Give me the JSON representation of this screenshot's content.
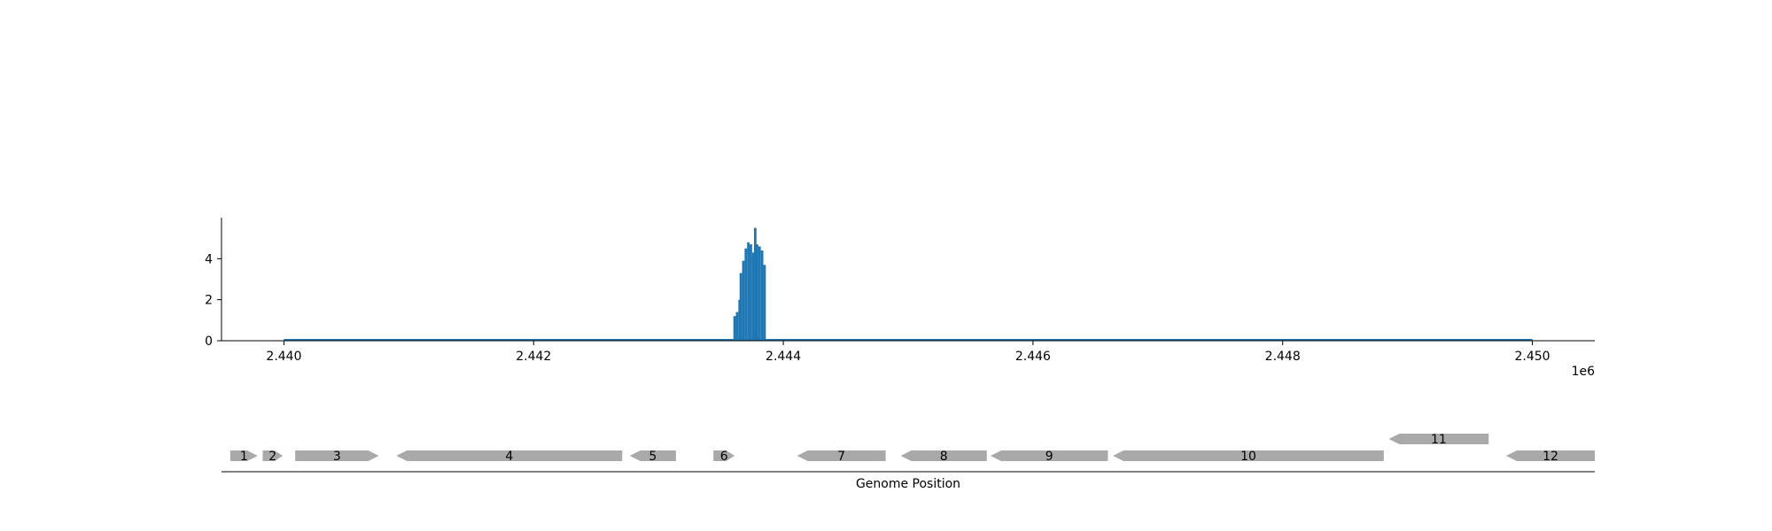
{
  "chart_data": [
    {
      "type": "bar",
      "title": "",
      "xlabel": "",
      "ylabel": "",
      "x_offset_label": "1e6",
      "xlim": [
        2439500,
        2450500
      ],
      "ylim": [
        0,
        6
      ],
      "x_ticks": [
        2440000,
        2442000,
        2444000,
        2446000,
        2448000,
        2450000
      ],
      "x_tick_labels": [
        "2.440",
        "2.442",
        "2.444",
        "2.446",
        "2.448",
        "2.450"
      ],
      "y_ticks": [
        0,
        2,
        4
      ],
      "y_tick_labels": [
        "0",
        "2",
        "4"
      ],
      "baseline_range": [
        2440000,
        2450000
      ],
      "bar_width": 20,
      "bars": [
        {
          "x": 2443600,
          "y": 1.2
        },
        {
          "x": 2443620,
          "y": 1.4
        },
        {
          "x": 2443640,
          "y": 2.0
        },
        {
          "x": 2443650,
          "y": 3.3
        },
        {
          "x": 2443670,
          "y": 3.9
        },
        {
          "x": 2443690,
          "y": 4.5
        },
        {
          "x": 2443710,
          "y": 4.8
        },
        {
          "x": 2443730,
          "y": 4.7
        },
        {
          "x": 2443750,
          "y": 4.3
        },
        {
          "x": 2443765,
          "y": 5.5
        },
        {
          "x": 2443780,
          "y": 4.7
        },
        {
          "x": 2443800,
          "y": 4.6
        },
        {
          "x": 2443820,
          "y": 4.4
        },
        {
          "x": 2443840,
          "y": 3.7
        }
      ],
      "grid": false,
      "legend": "none",
      "color": "#1f77b4"
    },
    {
      "type": "gene-track",
      "xlabel": "Genome Position",
      "xlim": [
        2439500,
        2450500
      ],
      "genes": [
        {
          "label": "1",
          "start": 2439570,
          "end": 2439790,
          "strand": "+",
          "row": 0
        },
        {
          "label": "2",
          "start": 2439830,
          "end": 2439990,
          "strand": "+",
          "row": 0
        },
        {
          "label": "3",
          "start": 2440090,
          "end": 2440760,
          "strand": "+",
          "row": 0
        },
        {
          "label": "4",
          "start": 2440900,
          "end": 2442710,
          "strand": "-",
          "row": 0
        },
        {
          "label": "5",
          "start": 2442770,
          "end": 2443140,
          "strand": "-",
          "row": 0
        },
        {
          "label": "6",
          "start": 2443440,
          "end": 2443610,
          "strand": "+",
          "row": 0
        },
        {
          "label": "7",
          "start": 2444110,
          "end": 2444820,
          "strand": "-",
          "row": 0
        },
        {
          "label": "8",
          "start": 2444940,
          "end": 2445630,
          "strand": "-",
          "row": 0
        },
        {
          "label": "9",
          "start": 2445660,
          "end": 2446600,
          "strand": "-",
          "row": 0
        },
        {
          "label": "10",
          "start": 2446640,
          "end": 2448810,
          "strand": "-",
          "row": 0
        },
        {
          "label": "11",
          "start": 2448850,
          "end": 2449650,
          "strand": "-",
          "row": 1
        },
        {
          "label": "12",
          "start": 2449790,
          "end": 2450500,
          "strand": "-",
          "row": 0
        }
      ],
      "gene_color": "#a9a9a9"
    }
  ]
}
